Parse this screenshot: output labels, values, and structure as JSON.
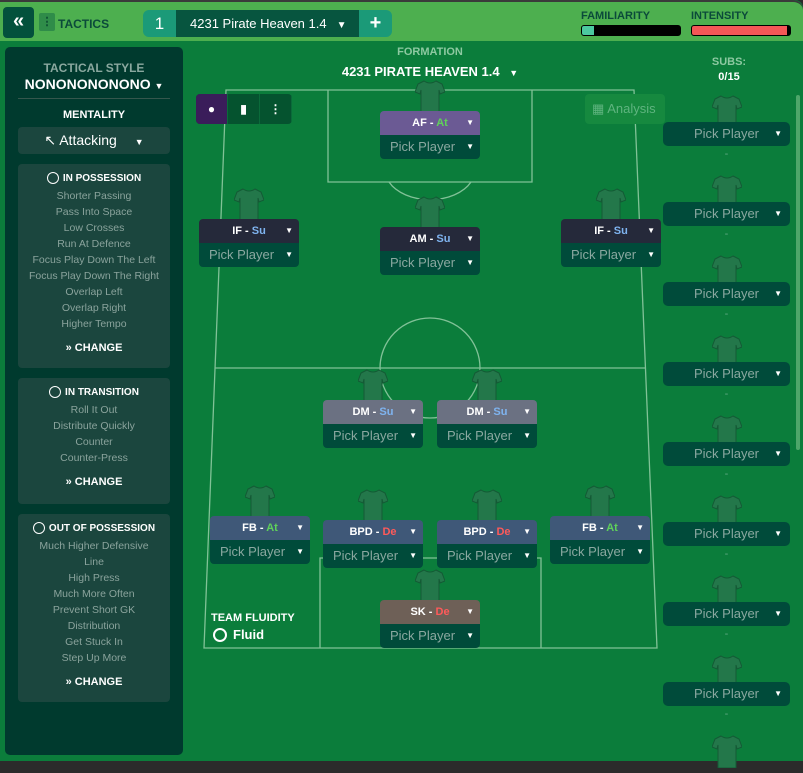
{
  "topbar": {
    "back_icon": "double-chevron-left-icon",
    "tactics_label": "TACTICS",
    "tab_number": "1",
    "tab_name": "4231 Pirate Heaven 1.4",
    "add_label": "+",
    "familiarity": {
      "label": "FAMILIARITY",
      "level_percent": 12,
      "color": "#4cc9a0"
    },
    "intensity": {
      "label": "INTENSITY",
      "level_percent": 97,
      "color": "#f45757"
    }
  },
  "sidebar": {
    "tactical_style_label": "TACTICAL STYLE",
    "tactical_style": "NONONONONONO",
    "mentality_label": "MENTALITY",
    "mentality": "Attacking",
    "in_possession": {
      "title": "IN POSSESSION",
      "items": [
        "Shorter Passing",
        "Pass Into Space",
        "Low Crosses",
        "Run At Defence",
        "Focus Play Down The Left",
        "Focus Play Down The Right",
        "Overlap Left",
        "Overlap Right",
        "Higher Tempo"
      ],
      "change": "CHANGE"
    },
    "in_transition": {
      "title": "IN TRANSITION",
      "items": [
        "Roll It Out",
        "Distribute Quickly",
        "Counter",
        "Counter-Press"
      ],
      "change": "CHANGE"
    },
    "out_of_possession": {
      "title": "OUT OF POSSESSION",
      "items": [
        "Much Higher Defensive",
        "Line",
        "High Press",
        "Much More Often",
        "Prevent Short GK",
        "Distribution",
        "Get Stuck In",
        "Step Up More"
      ],
      "change": "CHANGE"
    }
  },
  "formation": {
    "label": "FORMATION",
    "name": "4231 PIRATE HEAVEN 1.4",
    "analysis": "Analysis"
  },
  "players": [
    {
      "role": "AF",
      "duty": "At",
      "pick": "Pick Player"
    },
    {
      "role": "IF",
      "duty": "Su",
      "pick": "Pick Player"
    },
    {
      "role": "AM",
      "duty": "Su",
      "pick": "Pick Player"
    },
    {
      "role": "IF",
      "duty": "Su",
      "pick": "Pick Player"
    },
    {
      "role": "DM",
      "duty": "Su",
      "pick": "Pick Player"
    },
    {
      "role": "DM",
      "duty": "Su",
      "pick": "Pick Player"
    },
    {
      "role": "FB",
      "duty": "At",
      "pick": "Pick Player"
    },
    {
      "role": "BPD",
      "duty": "De",
      "pick": "Pick Player"
    },
    {
      "role": "BPD",
      "duty": "De",
      "pick": "Pick Player"
    },
    {
      "role": "FB",
      "duty": "At",
      "pick": "Pick Player"
    },
    {
      "role": "SK",
      "duty": "De",
      "pick": "Pick Player"
    }
  ],
  "fluidity": {
    "label": "TEAM FLUIDITY",
    "value": "Fluid"
  },
  "subs": {
    "label": "SUBS:",
    "count": "0/15",
    "items": [
      "Pick Player",
      "Pick Player",
      "Pick Player",
      "Pick Player",
      "Pick Player",
      "Pick Player",
      "Pick Player",
      "Pick Player"
    ],
    "placeholder": "-"
  },
  "colors": {
    "bg": "#0b7d3b",
    "topbar": "#4daf4f",
    "sidebar": "#003a2e",
    "attack": "#5fd15a",
    "support": "#7fb4f0",
    "defend": "#ff5a5a"
  }
}
